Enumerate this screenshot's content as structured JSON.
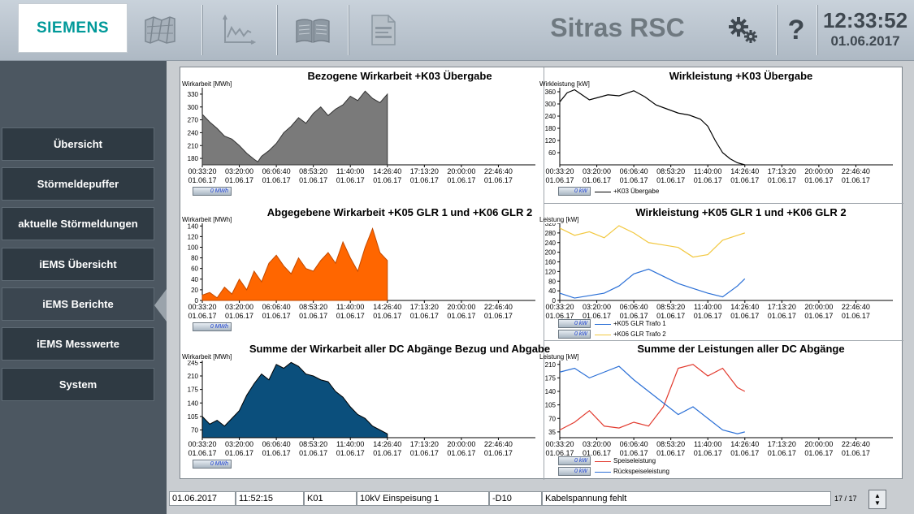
{
  "header": {
    "logo_text": "SIEMENS",
    "app_title": "Sitras RSC",
    "time": "12:33:52",
    "date": "01.06.2017",
    "help_label": "?",
    "toolbar_icons": [
      "map-icon",
      "chart-icon",
      "book-icon",
      "document-icon",
      "settings-icon"
    ],
    "brand_color": "#009999"
  },
  "sidebar": {
    "items": [
      {
        "label": "Übersicht"
      },
      {
        "label": "Störmeldepuffer"
      },
      {
        "label": "aktuelle Störmeldungen"
      },
      {
        "label": "iEMS Übersicht"
      },
      {
        "label": "iEMS Berichte"
      },
      {
        "label": "iEMS Messwerte"
      },
      {
        "label": "System"
      }
    ],
    "active_item": "iEMS Berichte"
  },
  "x_axis": {
    "times": [
      "00:33:20",
      "03:20:00",
      "06:06:40",
      "08:53:20",
      "11:40:00",
      "14:26:40",
      "17:13:20",
      "20:00:00",
      "22:46:40"
    ],
    "date": "01.06.17"
  },
  "charts": {
    "c1": {
      "title": "Bezogene Wirkarbeit +K03 Übergabe",
      "ylabel": "Wirkarbeit [MWh]",
      "value_box": "0 MWh"
    },
    "c2": {
      "title": "Wirkleistung +K03 Übergabe",
      "ylabel": "Wirkleistung [kW]",
      "value_box": "0 kW",
      "legend": "+K03 Übergabe"
    },
    "c3": {
      "title": "Abgegebene Wirkarbeit +K05 GLR 1 und +K06 GLR 2",
      "ylabel": "Wirkarbeit [MWh]",
      "value_box": "0 MWh"
    },
    "c4": {
      "title": "Wirkleistung +K05 GLR 1 und +K06 GLR 2",
      "ylabel": "Leistung [kW]",
      "value_box_1": "0 kW",
      "value_box_2": "0 kW",
      "legend_1": "+K05 GLR Trafo 1",
      "legend_2": "+K06 GLR Trafo 2"
    },
    "c5": {
      "title": "Summe der Wirkarbeit aller DC Abgänge Bezug und Abgabe",
      "ylabel": "Wirkarbeit [MWh]",
      "value_box": "0 MWh"
    },
    "c6": {
      "title": "Summe der Leistungen aller DC Abgänge",
      "ylabel": "Leistung [kW]",
      "value_box_1": "0 kW",
      "value_box_2": "0 kW",
      "legend_1": "Speiseleistung",
      "legend_2": "Rückspeiseleistung"
    }
  },
  "colors": {
    "orange": "#ff6600",
    "navy": "#0b4f7c",
    "gray": "#7a7a7a",
    "red": "#e23a2e",
    "blue": "#2a6fd6",
    "yellow": "#f2c840"
  },
  "chart_data": [
    {
      "type": "area",
      "title": "Bezogene Wirkarbeit +K03 Übergabe",
      "ylabel": "Wirkarbeit [MWh]",
      "yticks": [
        180,
        210,
        240,
        270,
        300,
        330
      ],
      "ylim": [
        165,
        345
      ],
      "xlim": [
        0,
        9
      ],
      "x": [
        0.0,
        0.2,
        0.4,
        0.6,
        0.8,
        1.0,
        1.2,
        1.4,
        1.5,
        1.6,
        1.8,
        2.0,
        2.2,
        2.4,
        2.6,
        2.8,
        3.0,
        3.2,
        3.4,
        3.6,
        3.8,
        4.0,
        4.2,
        4.4,
        4.6,
        4.8,
        5.0
      ],
      "values": [
        283,
        265,
        250,
        232,
        225,
        210,
        192,
        178,
        172,
        185,
        198,
        215,
        240,
        255,
        275,
        262,
        285,
        300,
        280,
        295,
        305,
        325,
        315,
        337,
        320,
        310,
        330
      ]
    },
    {
      "type": "line",
      "title": "Wirkleistung +K03 Übergabe",
      "ylabel": "Wirkleistung [kW]",
      "yticks": [
        60,
        120,
        180,
        240,
        300,
        360
      ],
      "ylim": [
        0,
        380
      ],
      "xlim": [
        0,
        9
      ],
      "series": [
        {
          "name": "+K03 Übergabe",
          "x": [
            0.0,
            0.2,
            0.4,
            0.6,
            0.8,
            1.0,
            1.3,
            1.6,
            2.0,
            2.3,
            2.6,
            2.9,
            3.2,
            3.5,
            3.8,
            4.0,
            4.2,
            4.4,
            4.6,
            4.8,
            5.0
          ],
          "values": [
            310,
            355,
            370,
            345,
            320,
            330,
            345,
            340,
            365,
            335,
            295,
            275,
            255,
            245,
            225,
            190,
            120,
            60,
            30,
            10,
            0
          ]
        }
      ]
    },
    {
      "type": "area",
      "title": "Abgegebene Wirkarbeit +K05 GLR 1 und +K06 GLR 2",
      "ylabel": "Wirkarbeit [MWh]",
      "yticks": [
        0,
        20,
        40,
        60,
        80,
        100,
        120,
        140
      ],
      "ylim": [
        0,
        145
      ],
      "xlim": [
        0,
        9
      ],
      "x": [
        0.0,
        0.2,
        0.4,
        0.6,
        0.8,
        1.0,
        1.2,
        1.4,
        1.6,
        1.8,
        2.0,
        2.2,
        2.4,
        2.6,
        2.8,
        3.0,
        3.2,
        3.4,
        3.6,
        3.8,
        4.0,
        4.2,
        4.4,
        4.6,
        4.8,
        5.0
      ],
      "values": [
        10,
        15,
        5,
        25,
        12,
        40,
        20,
        55,
        35,
        70,
        85,
        65,
        50,
        80,
        60,
        55,
        75,
        90,
        70,
        110,
        80,
        55,
        100,
        135,
        90,
        75
      ]
    },
    {
      "type": "line",
      "title": "Wirkleistung +K05 GLR 1 und +K06 GLR 2",
      "ylabel": "Leistung [kW]",
      "yticks": [
        0,
        40,
        80,
        120,
        160,
        200,
        240,
        280,
        320
      ],
      "ylim": [
        0,
        320
      ],
      "xlim": [
        0,
        9
      ],
      "series": [
        {
          "name": "+K05 GLR Trafo 1",
          "x": [
            0.0,
            0.4,
            0.8,
            1.2,
            1.6,
            2.0,
            2.4,
            2.8,
            3.2,
            3.6,
            4.0,
            4.4,
            4.8,
            5.0
          ],
          "values": [
            30,
            10,
            20,
            30,
            60,
            110,
            130,
            100,
            70,
            50,
            30,
            15,
            60,
            90
          ]
        },
        {
          "name": "+K06 GLR Trafo 2",
          "x": [
            0.0,
            0.4,
            0.8,
            1.2,
            1.6,
            2.0,
            2.4,
            2.8,
            3.2,
            3.6,
            4.0,
            4.4,
            4.8,
            5.0
          ],
          "values": [
            300,
            270,
            285,
            260,
            310,
            280,
            240,
            230,
            220,
            180,
            190,
            250,
            270,
            280
          ]
        }
      ]
    },
    {
      "type": "area",
      "title": "Summe der Wirkarbeit aller DC Abgänge Bezug und Abgabe",
      "ylabel": "Wirkarbeit [MWh]",
      "yticks": [
        70,
        105,
        140,
        175,
        210,
        245
      ],
      "ylim": [
        50,
        250
      ],
      "xlim": [
        0,
        9
      ],
      "x": [
        0.0,
        0.2,
        0.4,
        0.6,
        0.8,
        1.0,
        1.2,
        1.4,
        1.6,
        1.8,
        2.0,
        2.2,
        2.4,
        2.6,
        2.8,
        3.0,
        3.2,
        3.4,
        3.6,
        3.8,
        4.0,
        4.2,
        4.4,
        4.6,
        4.8,
        5.0
      ],
      "values": [
        105,
        85,
        95,
        80,
        100,
        120,
        160,
        190,
        215,
        200,
        240,
        230,
        245,
        235,
        215,
        210,
        200,
        195,
        170,
        155,
        130,
        110,
        100,
        80,
        70,
        60
      ]
    },
    {
      "type": "line",
      "title": "Summe der Leistungen aller DC Abgänge",
      "ylabel": "Leistung [kW]",
      "yticks": [
        35,
        70,
        105,
        140,
        175,
        210
      ],
      "ylim": [
        20,
        220
      ],
      "xlim": [
        0,
        9
      ],
      "series": [
        {
          "name": "Speiseleistung",
          "x": [
            0.0,
            0.4,
            0.8,
            1.2,
            1.6,
            2.0,
            2.4,
            2.8,
            3.2,
            3.6,
            4.0,
            4.4,
            4.8,
            5.0
          ],
          "values": [
            40,
            60,
            90,
            50,
            45,
            60,
            50,
            100,
            200,
            210,
            180,
            200,
            150,
            140
          ]
        },
        {
          "name": "Rückspeiseleistung",
          "x": [
            0.0,
            0.4,
            0.8,
            1.2,
            1.6,
            2.0,
            2.4,
            2.8,
            3.2,
            3.6,
            4.0,
            4.4,
            4.8,
            5.0
          ],
          "values": [
            190,
            200,
            175,
            190,
            205,
            170,
            140,
            110,
            80,
            100,
            70,
            40,
            30,
            35
          ]
        }
      ]
    }
  ],
  "statusbar": {
    "date": "01.06.2017",
    "time": "11:52:15",
    "code": "K01",
    "feed": "10kV Einspeisung 1",
    "device": "-D10",
    "message": "Kabelspannung fehlt",
    "counter": "17 / 17"
  }
}
